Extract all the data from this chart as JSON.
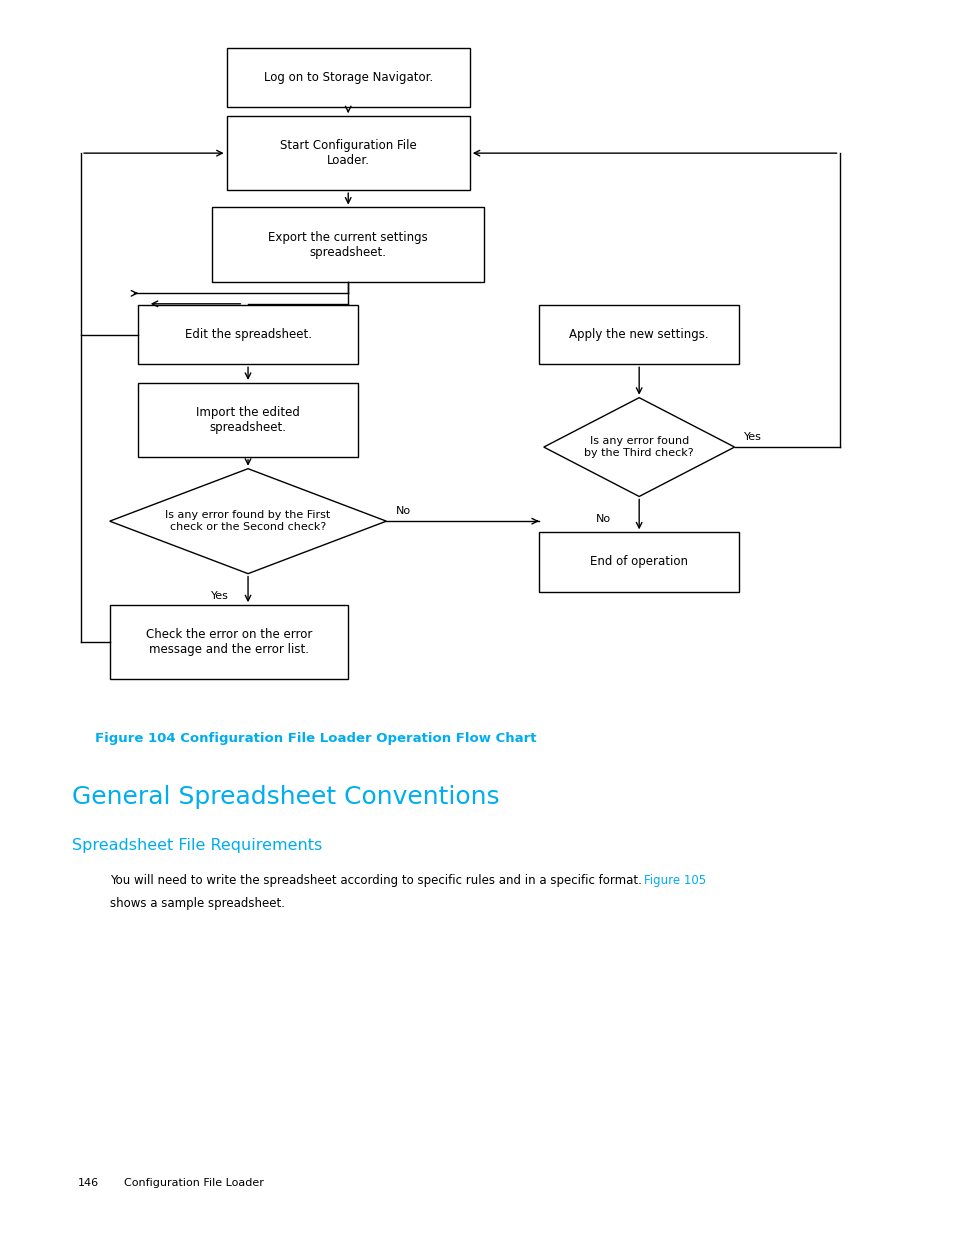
{
  "bg_color": "#ffffff",
  "page_width": 9.54,
  "page_height": 12.35,
  "dpi": 100,
  "cyan_color": "#00AEEF",
  "black_color": "#000000",
  "figure_caption": "Figure 104 Configuration File Loader Operation Flow Chart",
  "section_title": "General Spreadsheet Conventions",
  "subsection_title": "Spreadsheet File Requirements",
  "body_text1": "You will need to write the spreadsheet according to specific rules and in a specific format. ",
  "body_link": "Figure 105",
  "body_text2": "shows a sample spreadsheet.",
  "footer_page": "146",
  "footer_section": "Configuration File Loader"
}
